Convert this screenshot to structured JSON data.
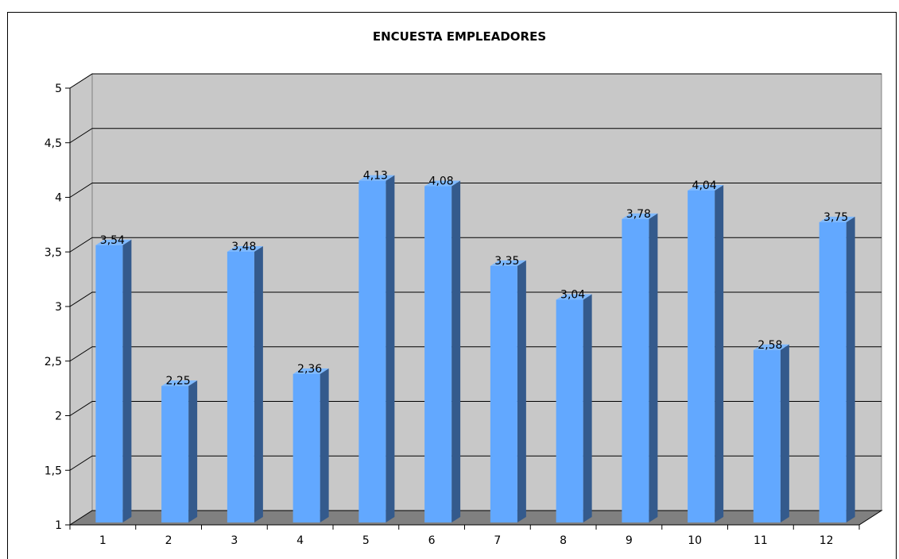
{
  "chart_data": {
    "type": "bar",
    "title": "ENCUESTA EMPLEADORES",
    "xlabel": "",
    "ylabel": "",
    "categories": [
      "1",
      "2",
      "3",
      "4",
      "5",
      "6",
      "7",
      "8",
      "9",
      "10",
      "11",
      "12"
    ],
    "values": [
      3.54,
      2.25,
      3.48,
      2.36,
      4.13,
      4.08,
      3.35,
      3.04,
      3.78,
      4.04,
      2.58,
      3.75
    ],
    "value_labels": [
      "3,54",
      "2,25",
      "3,48",
      "2,36",
      "4,13",
      "4,08",
      "3,35",
      "3,04",
      "3,78",
      "4,04",
      "2,58",
      "3,75"
    ],
    "ylim": [
      1,
      5
    ],
    "yticks": [
      1,
      1.5,
      2,
      2.5,
      3,
      3.5,
      4,
      4.5,
      5
    ],
    "ytick_labels": [
      "1",
      "1,5",
      "2",
      "2,5",
      "3",
      "3,5",
      "4",
      "4,5",
      "5"
    ],
    "grid": true,
    "legend": "none",
    "style": "3d-bar",
    "colors": {
      "bar_front": "#62A8FF",
      "bar_side": "#345A8C",
      "bar_top": "#7EB9FF",
      "wall": "#C8C8C8",
      "floor": "#808080",
      "gridline": "#000000"
    }
  }
}
